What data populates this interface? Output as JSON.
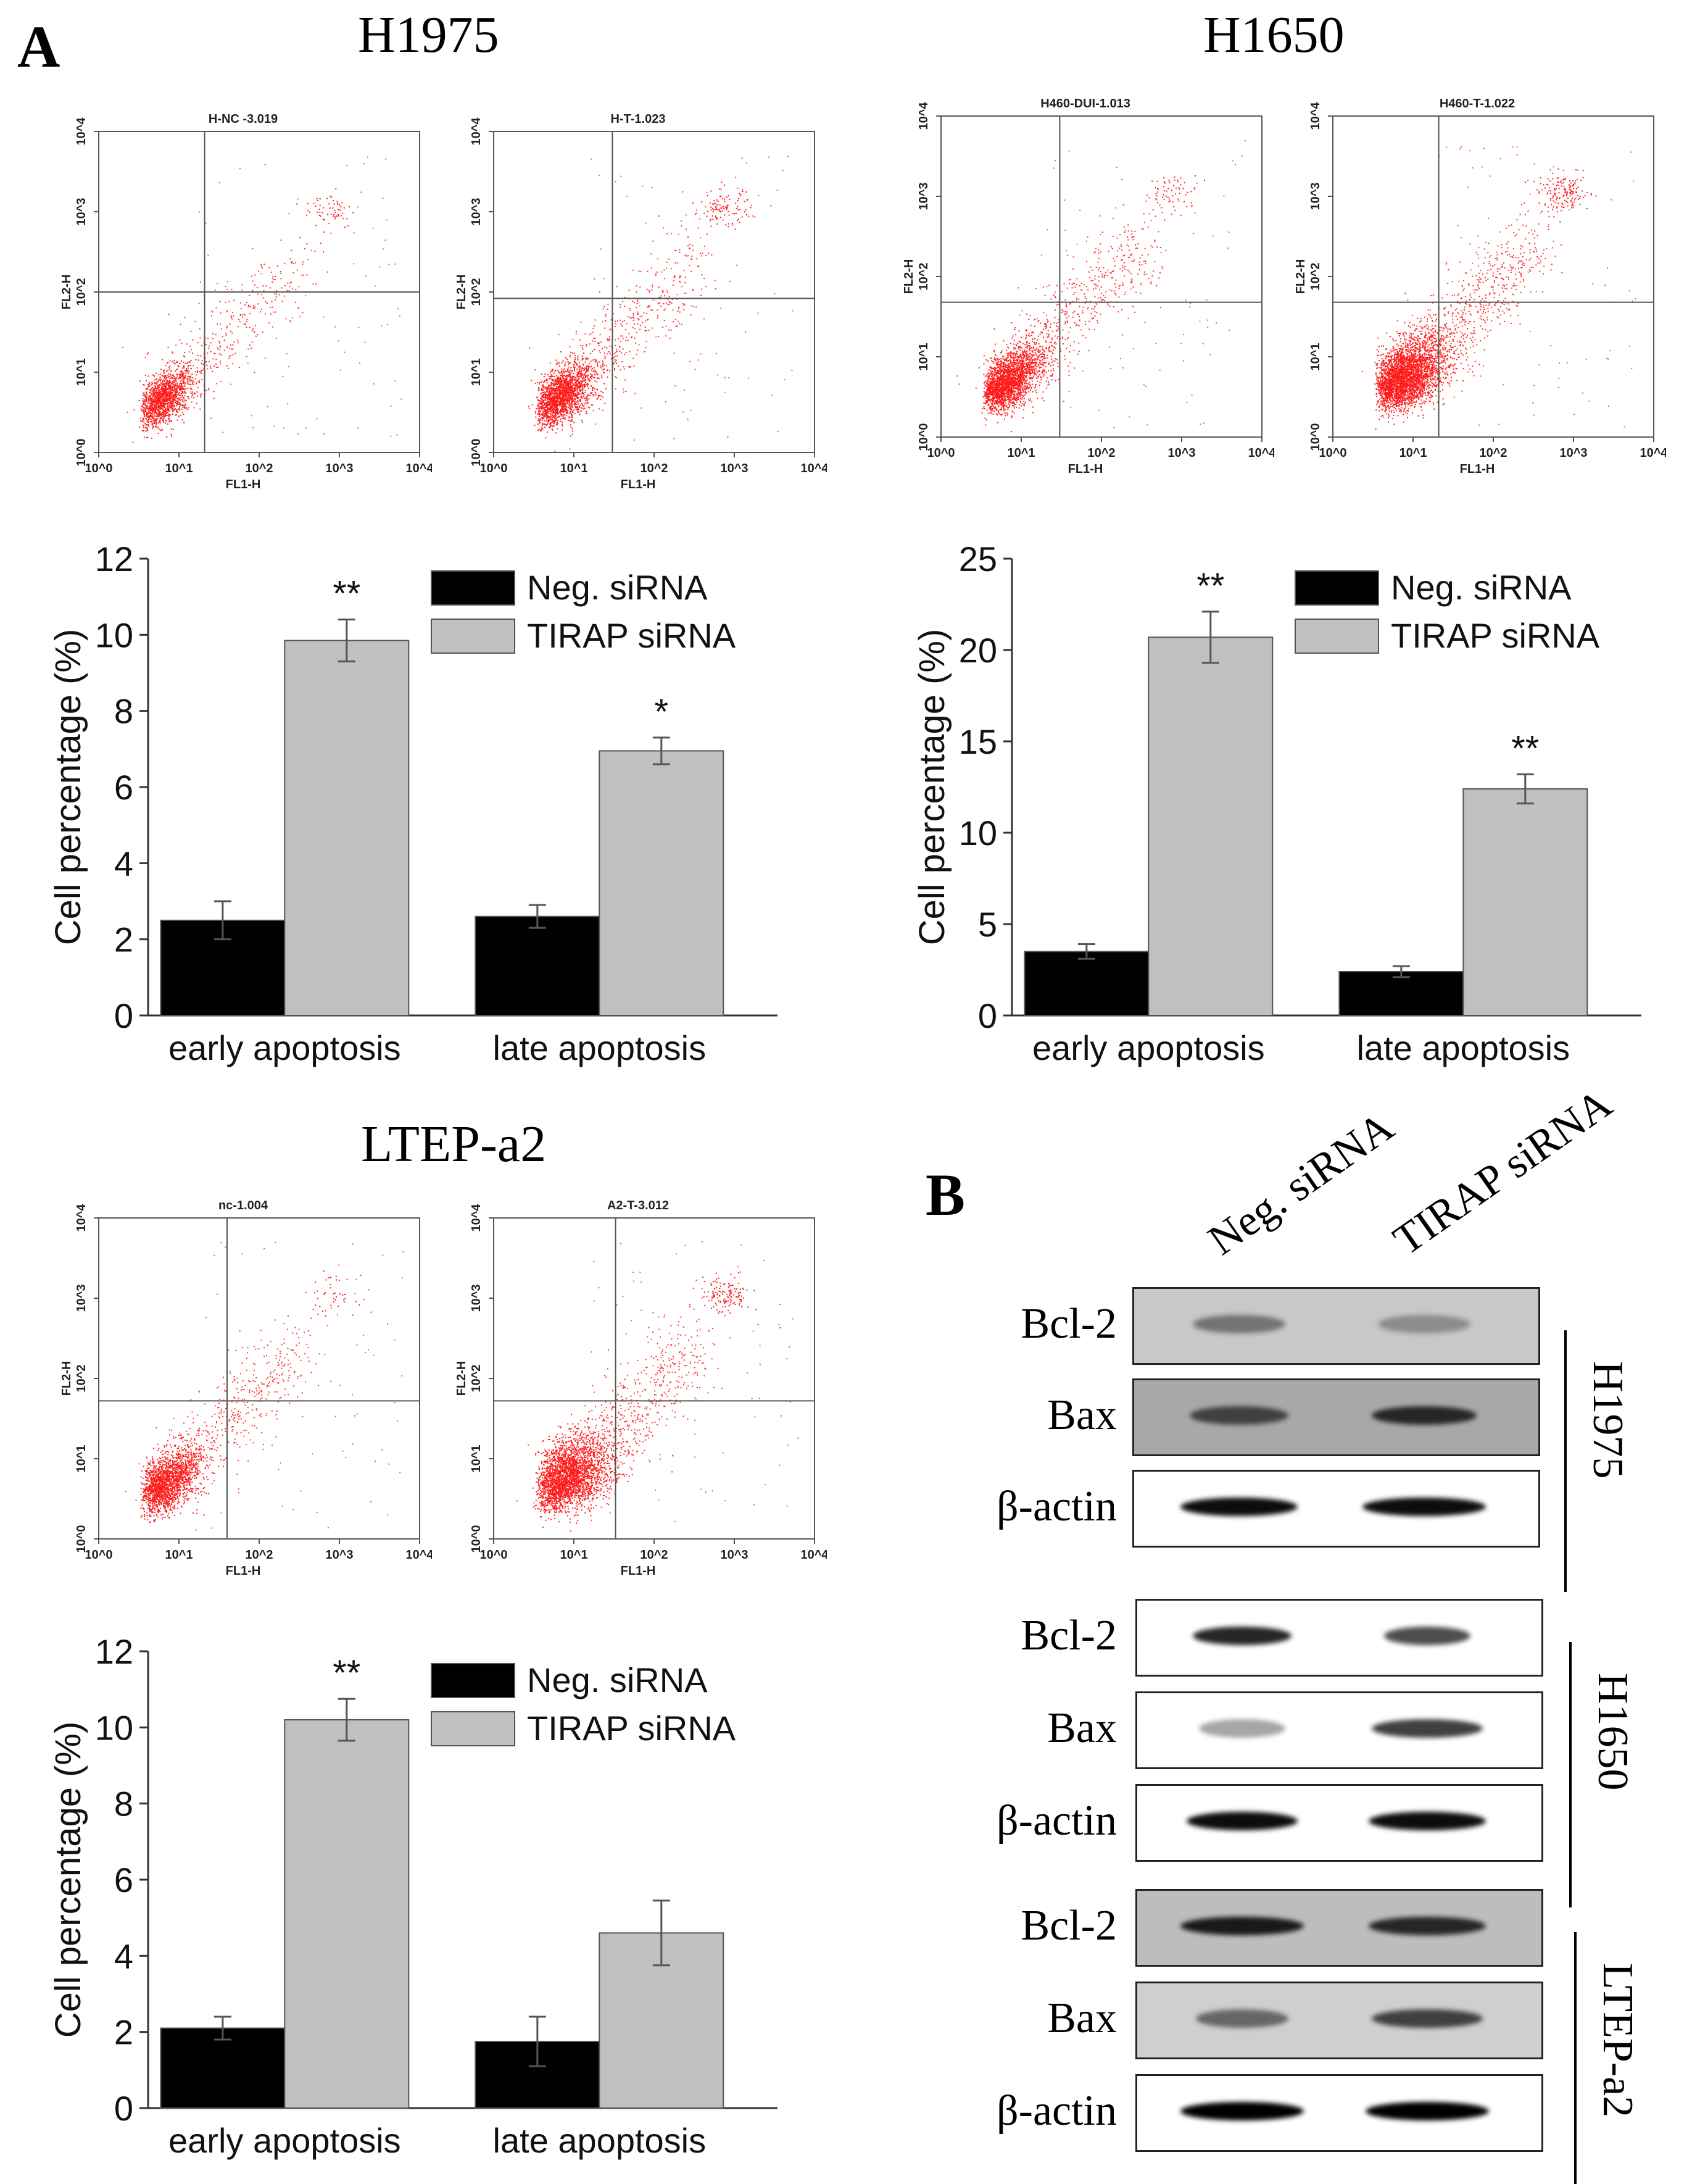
{
  "panels": {
    "A": {
      "letter": "A",
      "cell_lines": [
        {
          "name": "H1975",
          "flow_plots": [
            {
              "title": "H-NC  -3.019",
              "xlabel": "FL1-H",
              "ylabel": "FL2-H",
              "tick_labels": [
                "10^0",
                "10^1",
                "10^2",
                "10^3",
                "10^4"
              ]
            },
            {
              "title": "H-T-1.023",
              "xlabel": "FL1-H",
              "ylabel": "FL2-H",
              "tick_labels": [
                "10^0",
                "10^1",
                "10^2",
                "10^3",
                "10^4"
              ]
            }
          ]
        },
        {
          "name": "H1650",
          "flow_plots": [
            {
              "title": "H460-DUI-1.013",
              "xlabel": "FL1-H",
              "ylabel": "FL2-H",
              "tick_labels": [
                "10^0",
                "10^1",
                "10^2",
                "10^3",
                "10^4"
              ]
            },
            {
              "title": "H460-T-1.022",
              "xlabel": "FL1-H",
              "ylabel": "FL2-H",
              "tick_labels": [
                "10^0",
                "10^1",
                "10^2",
                "10^3",
                "10^4"
              ]
            }
          ]
        },
        {
          "name": "LTEP-a2",
          "flow_plots": [
            {
              "title": "nc-1.004",
              "xlabel": "FL1-H",
              "ylabel": "FL2-H",
              "tick_labels": [
                "10^0",
                "10^1",
                "10^2",
                "10^3",
                "10^4"
              ]
            },
            {
              "title": "A2-T-3.012",
              "xlabel": "FL1-H",
              "ylabel": "FL2-H",
              "tick_labels": [
                "10^0",
                "10^1",
                "10^2",
                "10^3",
                "10^4"
              ]
            }
          ]
        }
      ]
    },
    "B": {
      "letter": "B",
      "lanes": [
        "Neg. siRNA",
        "TIRAP  siRNA"
      ],
      "groups": [
        {
          "cell_line": "H1975",
          "proteins": [
            "Bcl-2",
            "Bax",
            "β-actin"
          ]
        },
        {
          "cell_line": "H1650",
          "proteins": [
            "Bcl-2",
            "Bax",
            "β-actin"
          ]
        },
        {
          "cell_line": "LTEP-a2",
          "proteins": [
            "Bcl-2",
            "Bax",
            "β-actin"
          ]
        }
      ]
    }
  },
  "chart_data": [
    {
      "type": "bar",
      "panel": "H1975",
      "categories": [
        "early apoptosis",
        "late apoptosis"
      ],
      "series": [
        {
          "name": "Neg. siRNA",
          "values": [
            2.5,
            2.6
          ],
          "errors": [
            0.5,
            0.3
          ],
          "color": "#000000"
        },
        {
          "name": "TIRAP siRNA",
          "values": [
            9.85,
            6.95
          ],
          "errors": [
            0.55,
            0.35
          ],
          "color": "#c0c0c0"
        }
      ],
      "significance": [
        "**",
        "*"
      ],
      "ylabel": "Cell percentage (%)",
      "ylim": [
        0,
        12
      ],
      "yticks": [
        0,
        2,
        4,
        6,
        8,
        10,
        12
      ],
      "legend": "top-right"
    },
    {
      "type": "bar",
      "panel": "H1650",
      "categories": [
        "early apoptosis",
        "late apoptosis"
      ],
      "series": [
        {
          "name": "Neg. siRNA",
          "values": [
            3.5,
            2.4
          ],
          "errors": [
            0.4,
            0.3
          ],
          "color": "#000000"
        },
        {
          "name": "TIRAP siRNA",
          "values": [
            20.7,
            12.4
          ],
          "errors": [
            1.4,
            0.8
          ],
          "color": "#c0c0c0"
        }
      ],
      "significance": [
        "**",
        "**"
      ],
      "ylabel": "Cell percentage (%)",
      "ylim": [
        0,
        25
      ],
      "yticks": [
        0,
        5,
        10,
        15,
        20,
        25
      ],
      "legend": "top-right"
    },
    {
      "type": "bar",
      "panel": "LTEP-a2",
      "categories": [
        "early apoptosis",
        "late apoptosis"
      ],
      "series": [
        {
          "name": "Neg. siRNA",
          "values": [
            2.1,
            1.75
          ],
          "errors": [
            0.3,
            0.65
          ],
          "color": "#000000"
        },
        {
          "name": "TIRAP siRNA",
          "values": [
            10.2,
            4.6
          ],
          "errors": [
            0.55,
            0.85
          ],
          "color": "#c0c0c0"
        }
      ],
      "significance": [
        "**",
        ""
      ],
      "ylabel": "Cell percentage (%)",
      "ylim": [
        0,
        12
      ],
      "yticks": [
        0,
        2,
        4,
        6,
        8,
        10,
        12
      ],
      "legend": "top-right"
    }
  ]
}
